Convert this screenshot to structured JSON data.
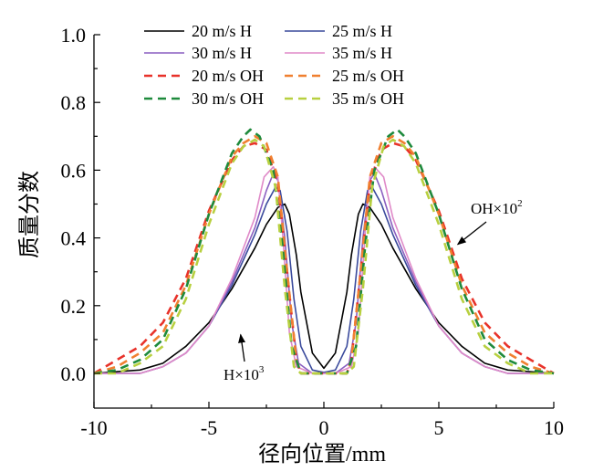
{
  "chart_data": {
    "type": "line",
    "title": "",
    "xlabel": "径向位置/mm",
    "ylabel": "质量分数",
    "xlim": [
      -10,
      10
    ],
    "ylim": [
      0,
      1.0
    ],
    "x_ticks": [
      -10,
      -5,
      0,
      5,
      10
    ],
    "y_ticks": [
      0.0,
      0.2,
      0.4,
      0.6,
      0.8,
      1.0
    ],
    "x_tick_labels": [
      "-10",
      "-5",
      "0",
      "5",
      "10"
    ],
    "y_tick_labels": [
      "0.0",
      "0.2",
      "0.4",
      "0.6",
      "0.8",
      "1.0"
    ],
    "grid": false,
    "legend_position": "top",
    "series": [
      {
        "name": "20 m/s H",
        "color": "#000000",
        "dash": "solid",
        "x": [
          -10,
          -8,
          -7,
          -6,
          -5,
          -4,
          -3,
          -2.5,
          -2,
          -1.7,
          -1.5,
          -1.2,
          -1,
          -0.5,
          0,
          0.5,
          1,
          1.2,
          1.5,
          1.7,
          2,
          2.5,
          3,
          4,
          5,
          6,
          7,
          8,
          10
        ],
        "y": [
          0.0,
          0.01,
          0.03,
          0.08,
          0.15,
          0.25,
          0.37,
          0.44,
          0.49,
          0.5,
          0.47,
          0.35,
          0.24,
          0.06,
          0.015,
          0.06,
          0.24,
          0.35,
          0.47,
          0.5,
          0.49,
          0.44,
          0.37,
          0.25,
          0.15,
          0.08,
          0.03,
          0.01,
          0.0
        ]
      },
      {
        "name": "25 m/s H",
        "color": "#3a4a9c",
        "dash": "solid",
        "x": [
          -10,
          -8,
          -7,
          -6,
          -5,
          -4,
          -3,
          -2.5,
          -2.1,
          -1.9,
          -1.6,
          -1.3,
          -1,
          -0.5,
          0,
          0.5,
          1,
          1.3,
          1.6,
          1.9,
          2.1,
          2.5,
          3,
          4,
          5,
          6,
          7,
          8,
          10
        ],
        "y": [
          0.0,
          0.0,
          0.02,
          0.06,
          0.14,
          0.26,
          0.41,
          0.5,
          0.55,
          0.54,
          0.42,
          0.22,
          0.08,
          0.01,
          0.003,
          0.01,
          0.08,
          0.22,
          0.42,
          0.54,
          0.55,
          0.5,
          0.41,
          0.26,
          0.14,
          0.06,
          0.02,
          0.0,
          0.0
        ]
      },
      {
        "name": "30 m/s H",
        "color": "#8a5fc0",
        "dash": "solid",
        "x": [
          -10,
          -8,
          -7,
          -6,
          -5,
          -4,
          -3,
          -2.5,
          -2.2,
          -2,
          -1.7,
          -1.4,
          -1.1,
          -0.5,
          0,
          0.5,
          1.1,
          1.4,
          1.7,
          2,
          2.2,
          2.5,
          3,
          4,
          5,
          6,
          7,
          8,
          10
        ],
        "y": [
          0.0,
          0.0,
          0.02,
          0.06,
          0.14,
          0.27,
          0.43,
          0.54,
          0.59,
          0.57,
          0.4,
          0.15,
          0.03,
          0.0,
          0.0,
          0.0,
          0.03,
          0.15,
          0.4,
          0.57,
          0.59,
          0.54,
          0.43,
          0.27,
          0.14,
          0.06,
          0.02,
          0.0,
          0.0
        ]
      },
      {
        "name": "35 m/s H",
        "color": "#e08ac8",
        "dash": "solid",
        "x": [
          -10,
          -8,
          -7,
          -6,
          -5,
          -4,
          -3,
          -2.6,
          -2.2,
          -2,
          -1.8,
          -1.5,
          -1.2,
          -0.5,
          0,
          0.5,
          1.2,
          1.5,
          1.8,
          2,
          2.2,
          2.6,
          3,
          4,
          5,
          6,
          7,
          8,
          10
        ],
        "y": [
          0.0,
          0.0,
          0.02,
          0.06,
          0.14,
          0.28,
          0.46,
          0.58,
          0.61,
          0.58,
          0.42,
          0.12,
          0.02,
          0.0,
          0.0,
          0.0,
          0.02,
          0.12,
          0.42,
          0.58,
          0.61,
          0.58,
          0.46,
          0.28,
          0.14,
          0.06,
          0.02,
          0.0,
          0.0
        ]
      },
      {
        "name": "20 m/s OH",
        "color": "#e8322a",
        "dash": "dashed",
        "x": [
          -10,
          -9,
          -8,
          -7,
          -6,
          -5,
          -4,
          -3.5,
          -3,
          -2.5,
          -2,
          -1.6,
          -1.2,
          -1,
          -0.5,
          0,
          0.5,
          1,
          1.2,
          1.6,
          2,
          2.5,
          3,
          3.5,
          4,
          5,
          6,
          7,
          8,
          9,
          10
        ],
        "y": [
          0.0,
          0.04,
          0.08,
          0.15,
          0.28,
          0.48,
          0.63,
          0.67,
          0.68,
          0.66,
          0.56,
          0.3,
          0.04,
          0.0,
          0.0,
          0.0,
          0.0,
          0.0,
          0.04,
          0.3,
          0.56,
          0.66,
          0.68,
          0.67,
          0.63,
          0.48,
          0.28,
          0.15,
          0.08,
          0.04,
          0.0
        ]
      },
      {
        "name": "25 m/s OH",
        "color": "#f08030",
        "dash": "dashed",
        "x": [
          -10,
          -9,
          -8,
          -7,
          -6,
          -5,
          -4,
          -3.5,
          -3,
          -2.5,
          -2,
          -1.6,
          -1.2,
          -1,
          -0.5,
          0,
          0.5,
          1,
          1.2,
          1.6,
          2,
          2.5,
          3,
          3.5,
          4,
          5,
          6,
          7,
          8,
          9,
          10
        ],
        "y": [
          0.0,
          0.02,
          0.06,
          0.12,
          0.26,
          0.47,
          0.64,
          0.68,
          0.7,
          0.68,
          0.58,
          0.3,
          0.04,
          0.0,
          0.0,
          0.0,
          0.0,
          0.0,
          0.04,
          0.3,
          0.58,
          0.68,
          0.7,
          0.68,
          0.64,
          0.47,
          0.26,
          0.12,
          0.06,
          0.02,
          0.0
        ]
      },
      {
        "name": "30 m/s  OH",
        "color": "#1e8a3c",
        "dash": "dashed",
        "x": [
          -10,
          -9,
          -8,
          -7,
          -6,
          -5,
          -4,
          -3.5,
          -3.2,
          -2.8,
          -2.2,
          -1.8,
          -1.4,
          -1,
          -0.5,
          0,
          0.5,
          1,
          1.4,
          1.8,
          2.2,
          2.8,
          3.2,
          3.5,
          4,
          5,
          6,
          7,
          8,
          9,
          10
        ],
        "y": [
          0.0,
          0.01,
          0.04,
          0.1,
          0.25,
          0.47,
          0.65,
          0.7,
          0.72,
          0.7,
          0.6,
          0.38,
          0.08,
          0.0,
          0.0,
          0.0,
          0.0,
          0.0,
          0.08,
          0.38,
          0.6,
          0.7,
          0.72,
          0.7,
          0.65,
          0.47,
          0.25,
          0.1,
          0.04,
          0.01,
          0.0
        ]
      },
      {
        "name": "35 m/s  OH",
        "color": "#b8d040",
        "dash": "dashed",
        "x": [
          -10,
          -9,
          -8,
          -7,
          -6,
          -5,
          -4,
          -3.5,
          -3,
          -2.6,
          -2.1,
          -1.7,
          -1.3,
          -1,
          -0.5,
          0,
          0.5,
          1,
          1.3,
          1.7,
          2.1,
          2.6,
          3,
          3.5,
          4,
          5,
          6,
          7,
          8,
          9,
          10
        ],
        "y": [
          0.0,
          0.0,
          0.03,
          0.08,
          0.22,
          0.44,
          0.62,
          0.67,
          0.69,
          0.67,
          0.55,
          0.25,
          0.02,
          0.0,
          0.0,
          0.0,
          0.0,
          0.0,
          0.02,
          0.25,
          0.55,
          0.67,
          0.69,
          0.67,
          0.62,
          0.44,
          0.22,
          0.08,
          0.03,
          0.0,
          0.0
        ]
      }
    ],
    "annotations": [
      {
        "text": "OH×10",
        "sup": "2",
        "points_to": {
          "x": 5.7,
          "y": 0.37
        }
      },
      {
        "text": "H×10",
        "sup": "3",
        "points_to": {
          "x": -3.7,
          "y": 0.12
        }
      }
    ]
  }
}
